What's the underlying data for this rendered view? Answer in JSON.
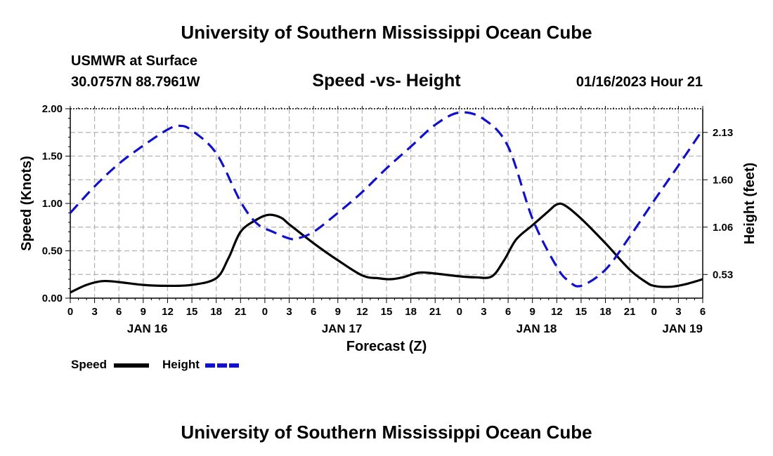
{
  "header": {
    "title": "University of Southern Mississippi Ocean Cube",
    "station": "USMWR at Surface",
    "coords": "30.0757N  88.7961W",
    "datetime": "01/16/2023 Hour 21"
  },
  "footer": {
    "title": "University of Southern Mississippi Ocean Cube"
  },
  "chart_data": {
    "type": "line",
    "title": "Speed -vs- Height",
    "xlabel": "Forecast (Z)",
    "ylabel": "Speed (Knots)",
    "y2label": "Height (feet)",
    "x_range_hours": [
      0,
      78
    ],
    "x_tick_labels": [
      "0",
      "3",
      "6",
      "9",
      "12",
      "15",
      "18",
      "21",
      "0",
      "3",
      "6",
      "9",
      "12",
      "15",
      "18",
      "21",
      "0",
      "3",
      "6",
      "9",
      "12",
      "15",
      "18",
      "21",
      "0",
      "3",
      "6"
    ],
    "date_labels": [
      {
        "label": "JAN 16",
        "hour": 9.5
      },
      {
        "label": "JAN 17",
        "hour": 33.5
      },
      {
        "label": "JAN 18",
        "hour": 57.5
      },
      {
        "label": "JAN 19",
        "hour": 75.5
      }
    ],
    "ylim": [
      0,
      2.0
    ],
    "y_ticks": [
      "0.00",
      "0.50",
      "1.00",
      "1.50",
      "2.00"
    ],
    "y2_ticks": [
      {
        "label": "0.53",
        "value": 0.25
      },
      {
        "label": "1.06",
        "value": 0.75
      },
      {
        "label": "1.60",
        "value": 1.25
      },
      {
        "label": "2.13",
        "value": 1.75
      }
    ],
    "grid": true,
    "legend": [
      {
        "name": "Speed",
        "color": "#000000",
        "style": "solid"
      },
      {
        "name": "Height",
        "color": "#1111cc",
        "style": "dashed"
      }
    ],
    "series": [
      {
        "name": "Speed",
        "unit": "knots",
        "color": "#000000",
        "style": "solid",
        "points": [
          [
            0,
            0.06
          ],
          [
            2,
            0.14
          ],
          [
            4,
            0.18
          ],
          [
            6,
            0.17
          ],
          [
            9,
            0.14
          ],
          [
            12,
            0.13
          ],
          [
            15,
            0.14
          ],
          [
            18,
            0.21
          ],
          [
            19.5,
            0.42
          ],
          [
            21,
            0.7
          ],
          [
            23,
            0.83
          ],
          [
            24.5,
            0.88
          ],
          [
            26,
            0.85
          ],
          [
            27,
            0.78
          ],
          [
            30,
            0.58
          ],
          [
            33,
            0.4
          ],
          [
            36,
            0.24
          ],
          [
            38,
            0.21
          ],
          [
            39.5,
            0.2
          ],
          [
            41,
            0.22
          ],
          [
            43,
            0.27
          ],
          [
            45,
            0.26
          ],
          [
            48,
            0.23
          ],
          [
            50,
            0.22
          ],
          [
            52,
            0.23
          ],
          [
            53.5,
            0.4
          ],
          [
            55,
            0.62
          ],
          [
            57,
            0.77
          ],
          [
            59,
            0.92
          ],
          [
            60,
            0.99
          ],
          [
            61,
            0.98
          ],
          [
            63,
            0.84
          ],
          [
            66,
            0.58
          ],
          [
            69,
            0.3
          ],
          [
            71,
            0.17
          ],
          [
            72,
            0.13
          ],
          [
            74,
            0.12
          ],
          [
            76,
            0.15
          ],
          [
            78,
            0.2
          ]
        ]
      },
      {
        "name": "Height",
        "unit": "scale knots-equivalent (right axis feet)",
        "color": "#1111cc",
        "style": "dashed",
        "points": [
          [
            0,
            0.9
          ],
          [
            3,
            1.18
          ],
          [
            6,
            1.42
          ],
          [
            9,
            1.61
          ],
          [
            12,
            1.78
          ],
          [
            13.5,
            1.82
          ],
          [
            15,
            1.77
          ],
          [
            18,
            1.53
          ],
          [
            21,
            1.02
          ],
          [
            23,
            0.79
          ],
          [
            25,
            0.7
          ],
          [
            27,
            0.63
          ],
          [
            28,
            0.63
          ],
          [
            30,
            0.7
          ],
          [
            33,
            0.9
          ],
          [
            36,
            1.12
          ],
          [
            39,
            1.37
          ],
          [
            42,
            1.6
          ],
          [
            45,
            1.83
          ],
          [
            48,
            1.96
          ],
          [
            51,
            1.89
          ],
          [
            54,
            1.6
          ],
          [
            57,
            0.84
          ],
          [
            60,
            0.33
          ],
          [
            61.5,
            0.18
          ],
          [
            63,
            0.13
          ],
          [
            66,
            0.3
          ],
          [
            69,
            0.65
          ],
          [
            72,
            1.03
          ],
          [
            75,
            1.4
          ],
          [
            78,
            1.78
          ]
        ]
      }
    ]
  }
}
